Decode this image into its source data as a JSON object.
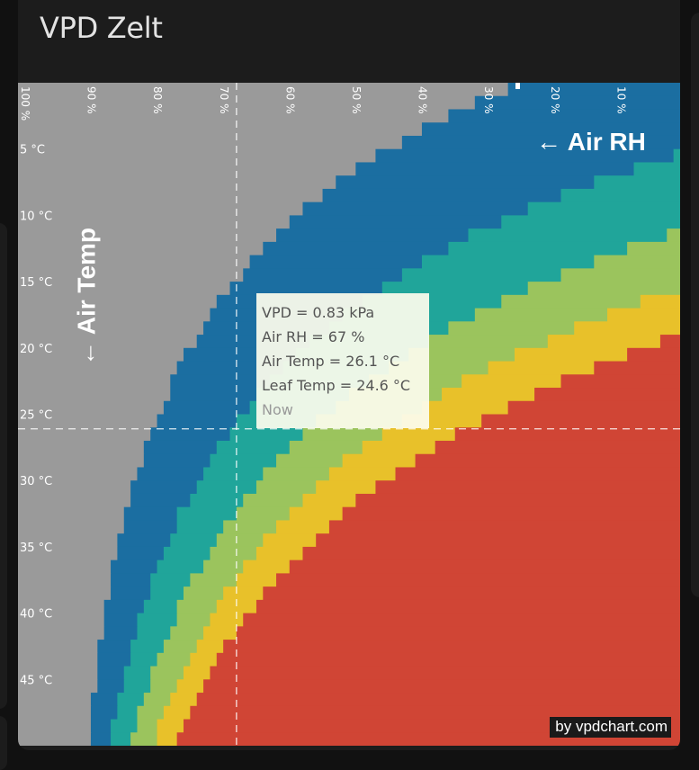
{
  "card": {
    "title": "VPD Zelt"
  },
  "chart_data": {
    "type": "heatmap",
    "x_axis": {
      "name": "Air RH",
      "label": "← Air RH",
      "unit": "%",
      "direction": "decreasing",
      "range": [
        100,
        0
      ],
      "ticks": [
        100,
        90,
        80,
        70,
        60,
        50,
        40,
        30,
        20,
        10
      ],
      "tick_labels": [
        "100 %",
        "90 %",
        "80 %",
        "70 %",
        "60 %",
        "50 %",
        "40 %",
        "30 %",
        "20 %",
        "10 %"
      ]
    },
    "y_axis": {
      "name": "Air Temp",
      "label": "← Air Temp",
      "unit": "°C",
      "range": [
        0,
        50
      ],
      "ticks": [
        5,
        10,
        15,
        20,
        25,
        30,
        35,
        40,
        45
      ],
      "tick_labels": [
        "5 °C",
        "10 °C",
        "15 °C",
        "20 °C",
        "25 °C",
        "30 °C",
        "35 °C",
        "40 °C",
        "45 °C"
      ]
    },
    "leaf_temp_offset_c": -1.5,
    "zones": [
      {
        "max_vpd_kpa": 0.4,
        "color": "#9a9a9a"
      },
      {
        "max_vpd_kpa": 0.8,
        "color": "#1b6ea1"
      },
      {
        "max_vpd_kpa": 1.2,
        "color": "#20a59a"
      },
      {
        "max_vpd_kpa": 1.6,
        "color": "#9bc45d"
      },
      {
        "max_vpd_kpa": 2.0,
        "color": "#e8c12a"
      },
      {
        "max_vpd_kpa": 99,
        "color": "#d04535"
      }
    ],
    "current": {
      "rh": 67,
      "air_temp": 26.1,
      "leaf_temp": 24.6,
      "vpd": 0.83
    },
    "tooltip": {
      "vpd": "VPD = 0.83 kPa",
      "rh": "Air RH = 67 %",
      "air_temp": "Air Temp = 26.1 °C",
      "leaf_temp": "Leaf Temp = 24.6 °C",
      "label": "Now"
    },
    "legend": "none",
    "grid": false
  },
  "credit": "by vpdchart.com",
  "colors": {
    "background": "#111111",
    "card": "#1c1c1c",
    "title": "#e3e3e3",
    "crosshair": "#ffffff",
    "tooltip_bg": "#fcfced"
  }
}
